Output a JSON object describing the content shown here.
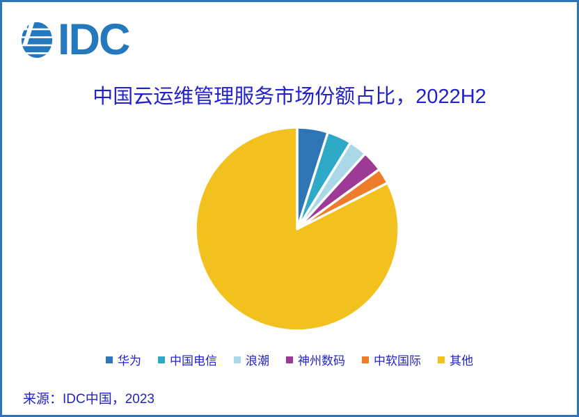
{
  "frame": {
    "border_color": "#2E75B6",
    "background_color": "#FFFFFF"
  },
  "logo": {
    "text": "IDC",
    "color": "#2378BE",
    "globe_icon": "idc-striped-globe"
  },
  "title": {
    "text": "中国云运维管理服务市场份额占比，2022H2",
    "color": "#2222CC"
  },
  "chart_data": {
    "type": "pie",
    "title": "中国云运维管理服务市场份额占比，2022H2",
    "units": "percent",
    "start_angle_deg_from_top": 0,
    "direction": "clockwise",
    "legend_position": "bottom",
    "slice_gap_color": "#FFFFFF",
    "slices": [
      {
        "label": "华为",
        "value": 4.9,
        "color": "#2E75B6"
      },
      {
        "label": "中国电信",
        "value": 3.9,
        "color": "#2EA9C6"
      },
      {
        "label": "浪潮",
        "value": 2.9,
        "color": "#AAD8E6"
      },
      {
        "label": "神州数码",
        "value": 3.3,
        "color": "#9C3A96"
      },
      {
        "label": "中软国际",
        "value": 2.5,
        "color": "#EE7D2B"
      },
      {
        "label": "其他",
        "value": 82.5,
        "color": "#F2C11E"
      }
    ]
  },
  "source": {
    "text": "来源：IDC中国，2023"
  }
}
